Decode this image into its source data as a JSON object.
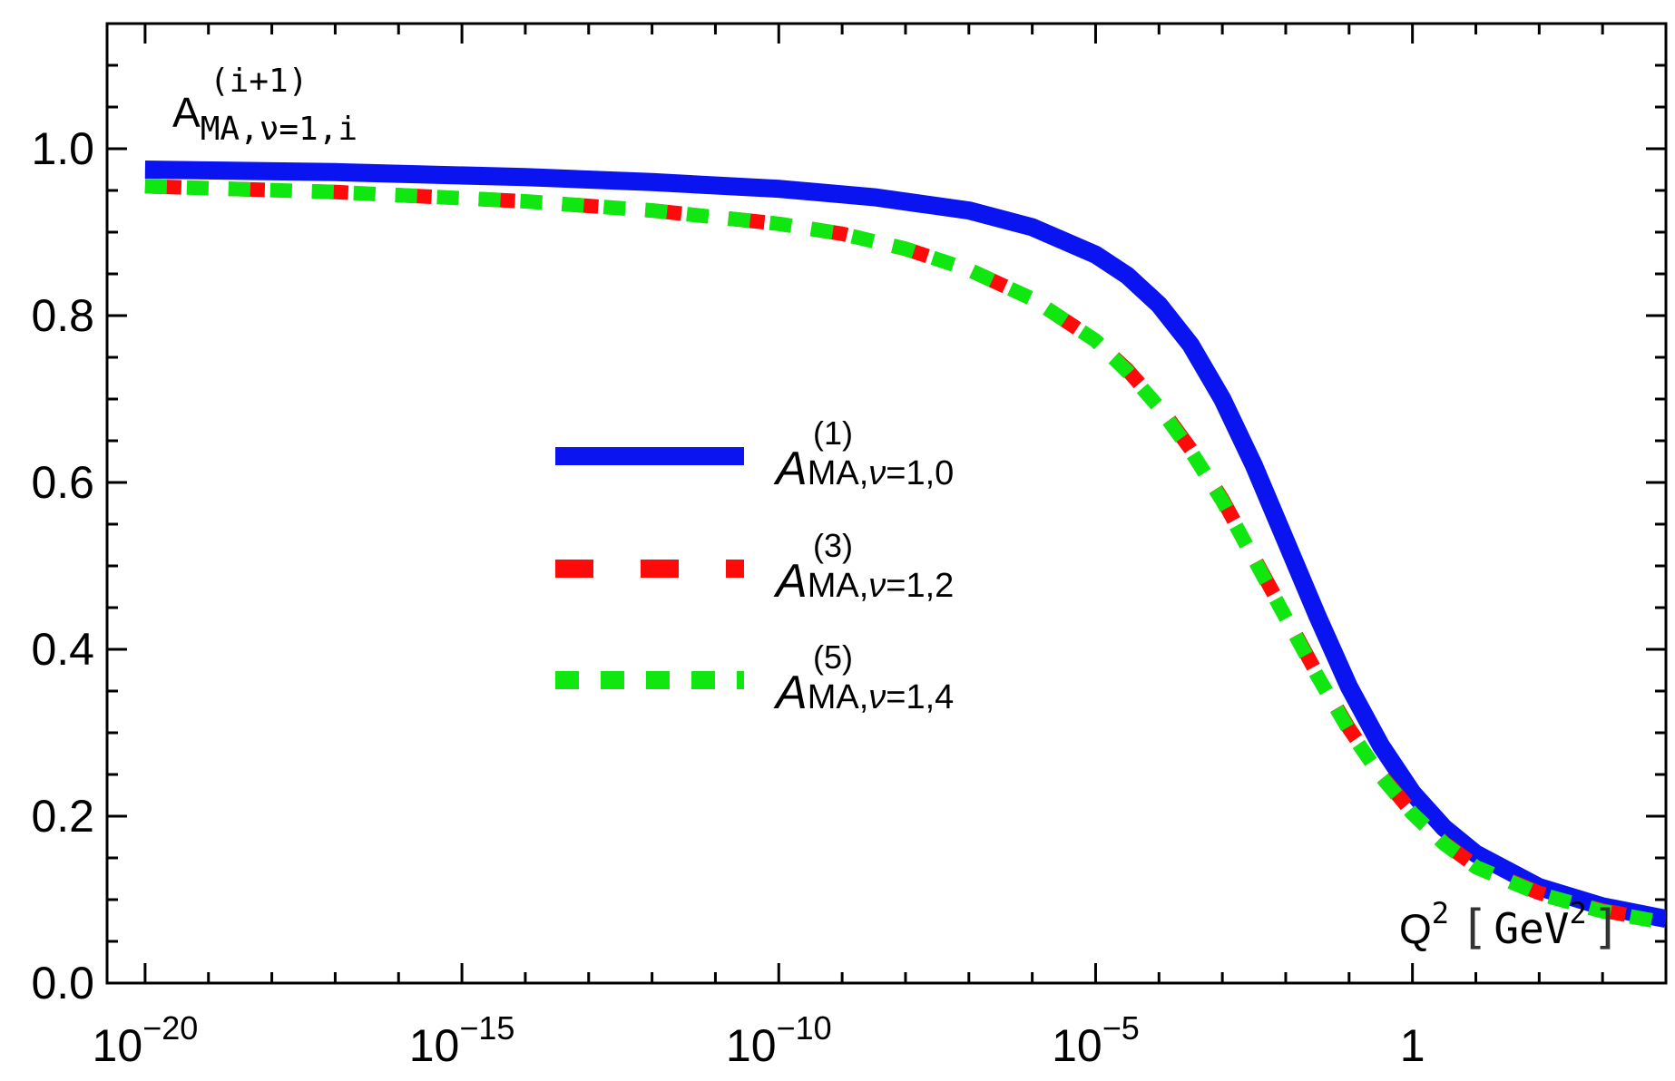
{
  "chart_data": {
    "type": "line",
    "title": "",
    "ylabel": {
      "base": "A",
      "subscript": "MA,ν=1,i",
      "superscript": "(i+1)"
    },
    "xlabel": {
      "base": "Q",
      "power": "2",
      "unit_open": "[",
      "unit": "GeV",
      "unit_power": "2",
      "unit_close": "]"
    },
    "xscale": "log10",
    "xlim_log10": [
      -20.6,
      4.0
    ],
    "ylim": [
      0.0,
      1.15
    ],
    "x_ticks": [
      {
        "exp": -20,
        "base": "10",
        "sup": "−20"
      },
      {
        "exp": -15,
        "base": "10",
        "sup": "−15"
      },
      {
        "exp": -10,
        "base": "10",
        "sup": "−10"
      },
      {
        "exp": -5,
        "base": "10",
        "sup": "−5"
      },
      {
        "exp": 0,
        "base": "1",
        "sup": ""
      }
    ],
    "y_ticks": [
      {
        "value": 0.0,
        "label": "0.0"
      },
      {
        "value": 0.2,
        "label": "0.2"
      },
      {
        "value": 0.4,
        "label": "0.4"
      },
      {
        "value": 0.6,
        "label": "0.6"
      },
      {
        "value": 0.8,
        "label": "0.8"
      },
      {
        "value": 1.0,
        "label": "1.0"
      }
    ],
    "legend_position": "center",
    "series": [
      {
        "name": "A(1) MA,ν=1,0",
        "label": {
          "base": "A",
          "superscript": "(1)",
          "subscript_a": "MA,",
          "subscript_nu": "ν",
          "subscript_b": "=1,0"
        },
        "color": "#0a14f0",
        "style": "solid",
        "log10_x": [
          -20,
          -17,
          -14,
          -12,
          -10,
          -8.5,
          -7,
          -6,
          -5,
          -4.5,
          -4,
          -3.5,
          -3,
          -2.5,
          -2,
          -1.5,
          -1,
          -0.5,
          0,
          0.5,
          1,
          2,
          3,
          4
        ],
        "y": [
          0.975,
          0.972,
          0.966,
          0.96,
          0.952,
          0.942,
          0.926,
          0.906,
          0.873,
          0.848,
          0.813,
          0.765,
          0.7,
          0.62,
          0.53,
          0.44,
          0.355,
          0.285,
          0.228,
          0.186,
          0.155,
          0.115,
          0.092,
          0.077
        ]
      },
      {
        "name": "A(3) MA,ν=1,2",
        "label": {
          "base": "A",
          "superscript": "(3)",
          "subscript_a": "MA,",
          "subscript_nu": "ν",
          "subscript_b": "=1,2"
        },
        "color": "#ff0a0a",
        "style": "dashed",
        "log10_x": [
          -20,
          -17,
          -14,
          -12,
          -10,
          -9,
          -8,
          -7,
          -6,
          -5,
          -4.5,
          -4,
          -3.5,
          -3,
          -2.5,
          -2,
          -1.5,
          -1,
          -0.5,
          0,
          0.5,
          1,
          2,
          3,
          4
        ],
        "y": [
          0.955,
          0.948,
          0.937,
          0.926,
          0.91,
          0.898,
          0.88,
          0.855,
          0.82,
          0.77,
          0.735,
          0.692,
          0.64,
          0.58,
          0.51,
          0.44,
          0.37,
          0.305,
          0.25,
          0.204,
          0.168,
          0.14,
          0.108,
          0.087,
          0.073
        ]
      },
      {
        "name": "A(5) MA,ν=1,4",
        "label": {
          "base": "A",
          "superscript": "(5)",
          "subscript_a": "MA,",
          "subscript_nu": "ν",
          "subscript_b": "=1,4"
        },
        "color": "#10e610",
        "style": "dotted",
        "log10_x": [
          -20,
          -17,
          -14,
          -12,
          -10,
          -9,
          -8,
          -7,
          -6,
          -5,
          -4.5,
          -4,
          -3.5,
          -3,
          -2.5,
          -2,
          -1.5,
          -1,
          -0.5,
          0,
          0.5,
          1,
          2,
          3,
          4
        ],
        "y": [
          0.955,
          0.948,
          0.937,
          0.926,
          0.91,
          0.898,
          0.88,
          0.855,
          0.82,
          0.77,
          0.733,
          0.69,
          0.638,
          0.578,
          0.508,
          0.438,
          0.368,
          0.303,
          0.248,
          0.203,
          0.167,
          0.139,
          0.107,
          0.086,
          0.072
        ]
      }
    ]
  }
}
